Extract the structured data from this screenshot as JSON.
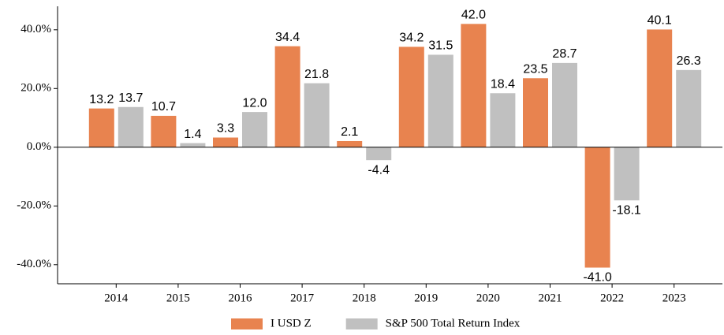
{
  "chart_data": {
    "type": "bar",
    "categories": [
      "2014",
      "2015",
      "2016",
      "2017",
      "2018",
      "2019",
      "2020",
      "2021",
      "2022",
      "2023"
    ],
    "series": [
      {
        "name": "I USD Z",
        "color": "#e8834f",
        "values": [
          13.2,
          10.7,
          3.3,
          34.4,
          2.1,
          34.2,
          42.0,
          23.5,
          -41.0,
          40.1
        ],
        "value_labels": [
          "13.2",
          "10.7",
          "3.3",
          "34.4",
          "2.1",
          "34.2",
          "42.0",
          "23.5",
          "-41.0",
          "40.1"
        ]
      },
      {
        "name": "S&P 500 Total Return Index",
        "color": "#c0c0c0",
        "values": [
          13.7,
          1.4,
          12.0,
          21.8,
          -4.4,
          31.5,
          18.4,
          28.7,
          -18.1,
          26.3
        ],
        "value_labels": [
          "13.7",
          "1.4",
          "12.0",
          "21.8",
          "-4.4",
          "31.5",
          "18.4",
          "28.7",
          "-18.1",
          "26.3"
        ]
      }
    ],
    "ylim": [
      -46.5,
      48
    ],
    "yticks": [
      {
        "value": -40,
        "label": "-40.0%"
      },
      {
        "value": -20,
        "label": "-20.0%"
      },
      {
        "value": 0,
        "label": "0.0%"
      },
      {
        "value": 20,
        "label": "20.0%"
      },
      {
        "value": 40,
        "label": "40.0%"
      }
    ],
    "grid": false,
    "legend": "bottom"
  }
}
